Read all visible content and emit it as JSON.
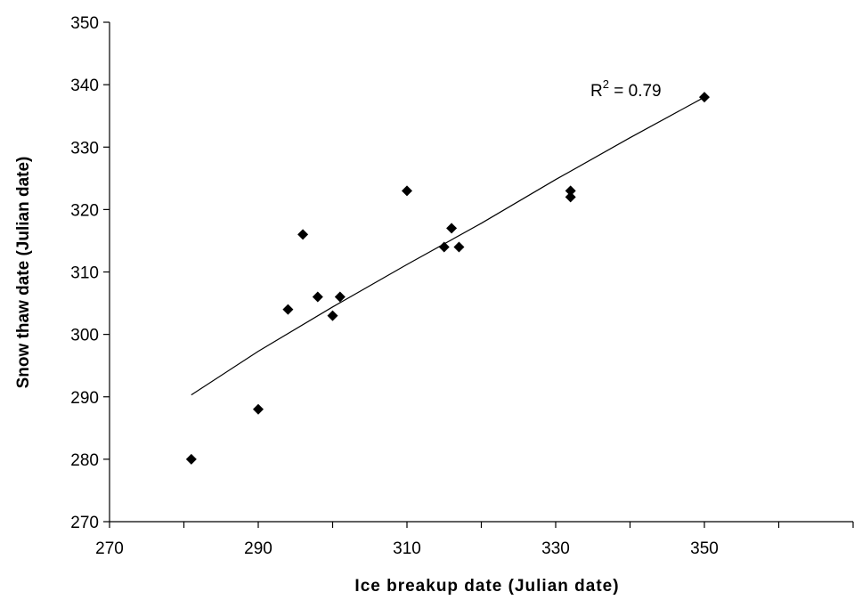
{
  "chart_data": {
    "type": "scatter",
    "title": "",
    "xlabel": "Ice breakup date (Julian date)",
    "ylabel": "Snow thaw date (Julian date)",
    "xlim": [
      270,
      370
    ],
    "ylim": [
      270,
      350
    ],
    "xticks": [
      270,
      290,
      310,
      330,
      350
    ],
    "yticks": [
      270,
      280,
      290,
      300,
      310,
      320,
      330,
      340,
      350
    ],
    "grid": false,
    "legend": "none",
    "marker": "diamond",
    "marker_color": "#000000",
    "series": [
      {
        "points": [
          {
            "x": 281,
            "y": 280
          },
          {
            "x": 290,
            "y": 288
          },
          {
            "x": 294,
            "y": 304
          },
          {
            "x": 296,
            "y": 316
          },
          {
            "x": 298,
            "y": 306
          },
          {
            "x": 300,
            "y": 303
          },
          {
            "x": 301,
            "y": 306
          },
          {
            "x": 310,
            "y": 323
          },
          {
            "x": 315,
            "y": 314
          },
          {
            "x": 316,
            "y": 317
          },
          {
            "x": 317,
            "y": 314
          },
          {
            "x": 332,
            "y": 323
          },
          {
            "x": 332,
            "y": 322
          },
          {
            "x": 350,
            "y": 338
          }
        ]
      }
    ],
    "trendline": {
      "type": "curve",
      "points": [
        {
          "x": 281,
          "y": 290.3
        },
        {
          "x": 290,
          "y": 297.3
        },
        {
          "x": 300,
          "y": 304.4
        },
        {
          "x": 310,
          "y": 311.2
        },
        {
          "x": 320,
          "y": 317.8
        },
        {
          "x": 330,
          "y": 324.8
        },
        {
          "x": 340,
          "y": 331.5
        },
        {
          "x": 350,
          "y": 338.0
        }
      ]
    },
    "annotation": {
      "base": "R",
      "superscript": "2",
      "text": " = 0.79"
    }
  }
}
